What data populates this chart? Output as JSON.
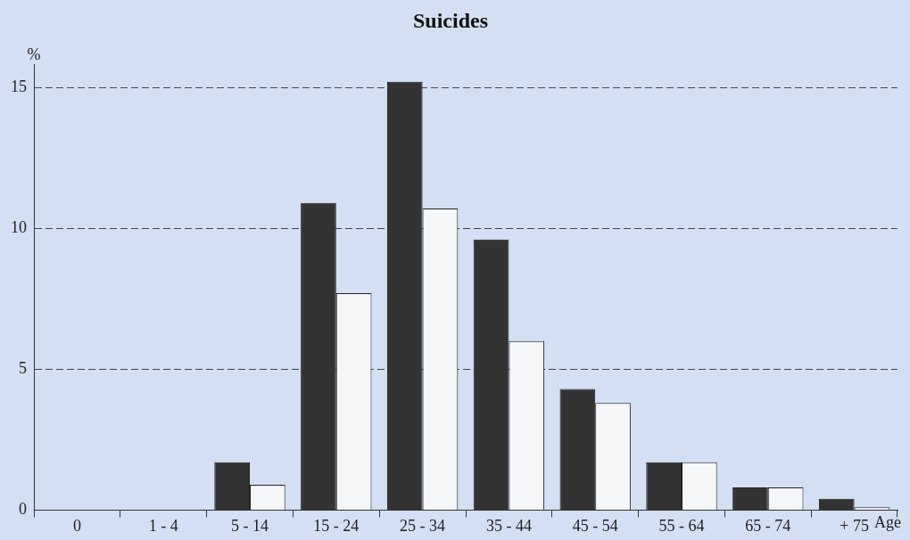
{
  "chart_data": {
    "type": "bar",
    "title": "Suicides",
    "ylabel": "%",
    "xlabel": "Age",
    "categories": [
      "0",
      "1 - 4",
      "5 - 14",
      "15 - 24",
      "25 - 34",
      "35 - 44",
      "45 - 54",
      "55 - 64",
      "65 - 74",
      "+ 75"
    ],
    "series": [
      {
        "color": "#333333",
        "values": [
          0,
          0,
          1.7,
          10.9,
          15.2,
          9.6,
          4.3,
          1.7,
          0.8,
          0.4
        ]
      },
      {
        "color": "#f4f6f8",
        "values": [
          0,
          0,
          0.9,
          7.7,
          10.7,
          6.0,
          3.8,
          1.7,
          0.8,
          0.1
        ]
      }
    ],
    "ylim": [
      0,
      15.8
    ],
    "yticks": [
      0,
      5,
      10,
      15
    ],
    "grid": "y",
    "legend": false
  }
}
